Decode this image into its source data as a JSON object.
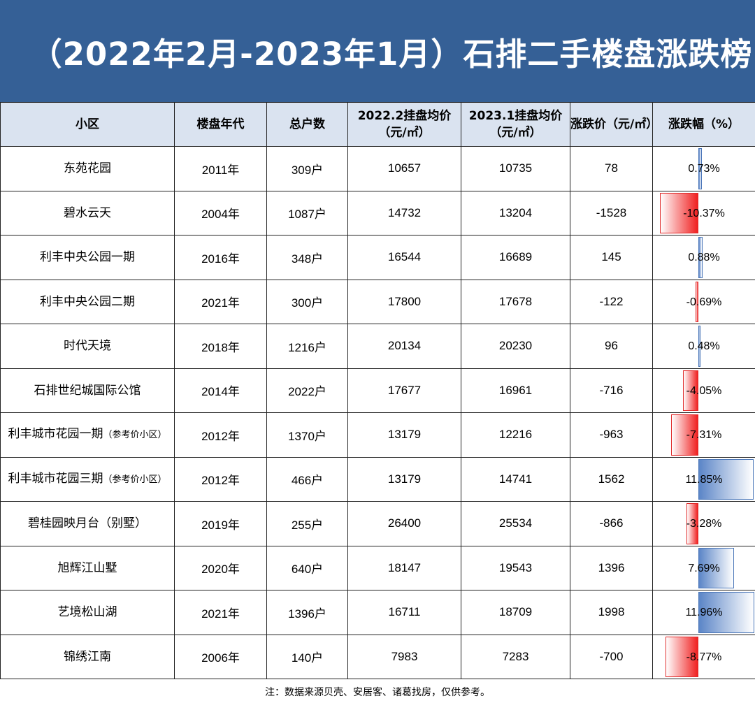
{
  "title": "（2022年2月-2023年1月）石排二手楼盘涨跌榜",
  "columns": [
    "小区",
    "楼盘年代",
    "总户数",
    "2022.2挂盘均价（元/㎡）",
    "2023.1挂盘均价（元/㎡）",
    "涨跌价（元/㎡）",
    "涨跌幅（%）"
  ],
  "rows": [
    {
      "name": "东苑花园",
      "note": "",
      "year": "2011年",
      "households": "309户",
      "price_2022": "10657",
      "price_2023": "10735",
      "change": "78",
      "pct": "0.73%",
      "pct_value": 0.73
    },
    {
      "name": "碧水云天",
      "note": "",
      "year": "2004年",
      "households": "1087户",
      "price_2022": "14732",
      "price_2023": "13204",
      "change": "-1528",
      "pct": "-10.37%",
      "pct_value": -10.37
    },
    {
      "name": "利丰中央公园一期",
      "note": "",
      "year": "2016年",
      "households": "348户",
      "price_2022": "16544",
      "price_2023": "16689",
      "change": "145",
      "pct": "0.88%",
      "pct_value": 0.88
    },
    {
      "name": "利丰中央公园二期",
      "note": "",
      "year": "2021年",
      "households": "300户",
      "price_2022": "17800",
      "price_2023": "17678",
      "change": "-122",
      "pct": "-0.69%",
      "pct_value": -0.69
    },
    {
      "name": "时代天境",
      "note": "",
      "year": "2018年",
      "households": "1216户",
      "price_2022": "20134",
      "price_2023": "20230",
      "change": "96",
      "pct": "0.48%",
      "pct_value": 0.48
    },
    {
      "name": "石排世纪城国际公馆",
      "note": "",
      "year": "2014年",
      "households": "2022户",
      "price_2022": "17677",
      "price_2023": "16961",
      "change": "-716",
      "pct": "-4.05%",
      "pct_value": -4.05
    },
    {
      "name": "利丰城市花园一期",
      "note": "（参考价小区）",
      "year": "2012年",
      "households": "1370户",
      "price_2022": "13179",
      "price_2023": "12216",
      "change": "-963",
      "pct": "-7.31%",
      "pct_value": -7.31
    },
    {
      "name": "利丰城市花园三期",
      "note": "（参考价小区）",
      "year": "2012年",
      "households": "466户",
      "price_2022": "13179",
      "price_2023": "14741",
      "change": "1562",
      "pct": "11.85%",
      "pct_value": 11.85
    },
    {
      "name": "碧桂园映月台（别墅）",
      "note": "",
      "year": "2019年",
      "households": "255户",
      "price_2022": "26400",
      "price_2023": "25534",
      "change": "-866",
      "pct": "-3.28%",
      "pct_value": -3.28
    },
    {
      "name": "旭辉江山墅",
      "note": "",
      "year": "2020年",
      "households": "640户",
      "price_2022": "18147",
      "price_2023": "19543",
      "change": "1396",
      "pct": "7.69%",
      "pct_value": 7.69
    },
    {
      "name": "艺境松山湖",
      "note": "",
      "year": "2021年",
      "households": "1396户",
      "price_2022": "16711",
      "price_2023": "18709",
      "change": "1998",
      "pct": "11.96%",
      "pct_value": 11.96
    },
    {
      "name": "锦绣江南",
      "note": "",
      "year": "2006年",
      "households": "140户",
      "price_2022": "7983",
      "price_2023": "7283",
      "change": "-700",
      "pct": "-8.77%",
      "pct_value": -8.77
    }
  ],
  "footnote": "注：数据来源贝壳、安居客、诸葛找房，仅供参考。",
  "colors": {
    "banner": "#356096",
    "header": "#dae3f0",
    "bar_positive": "#5b85c7",
    "bar_negative": "#f02020"
  }
}
